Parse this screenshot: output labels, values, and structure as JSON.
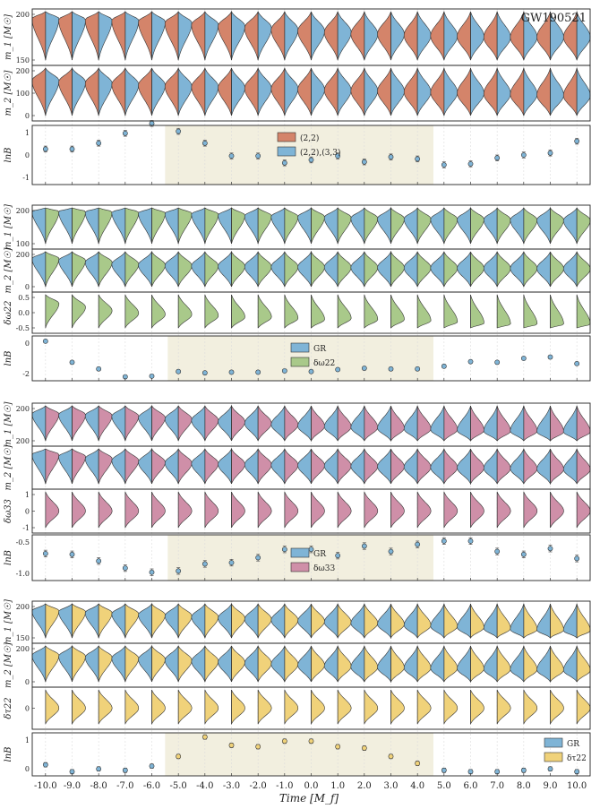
{
  "event_label": "GW190521",
  "x_axis_label": "Time [M_f]",
  "colors": {
    "c22": "#d4846a",
    "c2233": "#7fb4d6",
    "gr": "#7fb4d6",
    "dw22": "#a9c98a",
    "dw33": "#cf8fa8",
    "dt22": "#f0d27a",
    "highlight": "#f2efdf",
    "frame": "#222222"
  },
  "chart_data": [
    {
      "type": "violin",
      "panel_group": "A",
      "title": "GW190521",
      "times": [
        -10,
        -9,
        -8,
        -7,
        -6,
        -5,
        -4,
        -3,
        -2,
        -1,
        0,
        1,
        2,
        3,
        4,
        5,
        6,
        7,
        8,
        9,
        10
      ],
      "xtick_labels": [
        "-10.0",
        "-9.0",
        "-8.0",
        "-7.0",
        "-6.0",
        "-5.0",
        "-4.0",
        "-3.0",
        "-2.0",
        "-1.0",
        "0.0",
        "1.0",
        "2.0",
        "3.0",
        "4.0",
        "5.0",
        "6.0",
        "7.0",
        "8.0",
        "9.0",
        "10.0"
      ],
      "highlight_range": [
        -5.5,
        4.6
      ],
      "legend": [
        "(2,2)",
        "(2,2),(3,3)"
      ],
      "rows": [
        {
          "ylabel": "m_1 [M_sun]",
          "yticks": [
            "200",
            "150"
          ],
          "ylim": [
            120,
            210
          ],
          "left": "(2,2)",
          "right": "(2,2),(3,3)",
          "centers": [
            195,
            193,
            193,
            192,
            190,
            188,
            185,
            183,
            180,
            177,
            175,
            173,
            170,
            170,
            168,
            167,
            166,
            165,
            165,
            165,
            165
          ]
        },
        {
          "ylabel": "m_2 [M_sun]",
          "yticks": [
            "200",
            "100",
            "0"
          ],
          "ylim": [
            -10,
            210
          ],
          "left": "(2,2)",
          "right": "(2,2),(3,3)",
          "centers": [
            150,
            145,
            140,
            135,
            132,
            128,
            125,
            122,
            120,
            118,
            115,
            112,
            110,
            108,
            105,
            103,
            100,
            98,
            95,
            92,
            90
          ]
        }
      ],
      "lnB": {
        "ylabel": "lnB",
        "yticks": [
          "1",
          "0",
          "-1"
        ],
        "ylim": [
          -1.5,
          1.5
        ],
        "values": [
          0.3,
          0.3,
          0.6,
          1.1,
          1.6,
          1.2,
          0.6,
          -0.05,
          -0.05,
          -0.4,
          -0.25,
          -0.05,
          -0.35,
          -0.1,
          -0.2,
          -0.5,
          -0.45,
          -0.15,
          0.0,
          0.1,
          0.7
        ],
        "errors": [
          0.15,
          0.15,
          0.15,
          0.15,
          0.15,
          0.15,
          0.15,
          0.15,
          0.15,
          0.15,
          0.15,
          0.15,
          0.15,
          0.15,
          0.15,
          0.15,
          0.15,
          0.15,
          0.15,
          0.15,
          0.15
        ]
      }
    },
    {
      "type": "violin",
      "panel_group": "B",
      "times": [
        -10,
        -9,
        -8,
        -7,
        -6,
        -5,
        -4,
        -3,
        -2,
        -1,
        0,
        1,
        2,
        3,
        4,
        5,
        6,
        7,
        8,
        9,
        10
      ],
      "highlight_range": [
        -5.4,
        4.6
      ],
      "legend": [
        "GR",
        "δω22"
      ],
      "rows": [
        {
          "ylabel": "m_1 [M_sun]",
          "yticks": [
            "200",
            "100"
          ],
          "ylim": [
            90,
            215
          ],
          "left": "GR",
          "right": "δω22",
          "centers": [
            198,
            197,
            196,
            195,
            193,
            192,
            190,
            187,
            185,
            183,
            182,
            180,
            178,
            177,
            176,
            175,
            175,
            174,
            173,
            173,
            172
          ]
        },
        {
          "ylabel": "m_2 [M_sun]",
          "yticks": [
            "200",
            "0"
          ],
          "ylim": [
            -10,
            220
          ],
          "left": "GR",
          "right": "δω22",
          "centers": [
            170,
            160,
            150,
            140,
            135,
            132,
            130,
            128,
            126,
            125,
            124,
            123,
            122,
            121,
            120,
            119,
            118,
            117,
            117,
            116,
            115
          ]
        },
        {
          "ylabel": "δω22",
          "yticks": [
            "0.5",
            "0.0",
            "-0.5"
          ],
          "ylim": [
            -0.85,
            0.8
          ],
          "left": "none",
          "right": "δω22",
          "centers": [
            0.35,
            0.2,
            0.05,
            -0.05,
            -0.1,
            -0.1,
            -0.15,
            -0.2,
            -0.2,
            -0.25,
            -0.3,
            -0.25,
            -0.3,
            -0.3,
            -0.35,
            -0.4,
            -0.45,
            -0.55,
            -0.55,
            -0.55,
            -0.55
          ]
        }
      ],
      "lnB": {
        "ylabel": "lnB",
        "yticks": [
          "0",
          "-2"
        ],
        "ylim": [
          -2.4,
          1.0
        ],
        "values": [
          0.6,
          -1.0,
          -1.5,
          -2.1,
          -2.05,
          -1.7,
          -1.8,
          -1.75,
          -1.75,
          -1.65,
          -1.7,
          -1.55,
          -1.45,
          -1.5,
          -1.5,
          -1.3,
          -0.95,
          -1.0,
          -0.7,
          -0.6,
          -1.1
        ],
        "errors": [
          0.12,
          0.12,
          0.12,
          0.12,
          0.12,
          0.12,
          0.12,
          0.12,
          0.12,
          0.12,
          0.12,
          0.12,
          0.12,
          0.12,
          0.12,
          0.12,
          0.12,
          0.12,
          0.12,
          0.12,
          0.12
        ]
      }
    },
    {
      "type": "violin",
      "panel_group": "C",
      "times": [
        -10,
        -9,
        -8,
        -7,
        -6,
        -5,
        -4,
        -3,
        -2,
        -1,
        0,
        1,
        2,
        3,
        4,
        5,
        6,
        7,
        8,
        9,
        10
      ],
      "highlight_range": [
        -5.4,
        4.6
      ],
      "legend": [
        "GR",
        "δω33"
      ],
      "rows": [
        {
          "ylabel": "m_1 [M_sun]",
          "yticks": [
            "200",
            "200"
          ],
          "ylim": [
            150,
            210
          ],
          "left": "GR",
          "right": "δω33",
          "centers": [
            195,
            194,
            193,
            192,
            190,
            188,
            186,
            184,
            182,
            180,
            178,
            177,
            176,
            175,
            174,
            173,
            172,
            171,
            171,
            170,
            170
          ]
        },
        {
          "ylabel": "m_2 [M_sun]",
          "yticks": [],
          "ylim": [
            0,
            210
          ],
          "left": "GR",
          "right": "δω33",
          "centers": [
            170,
            160,
            150,
            140,
            132,
            128,
            125,
            122,
            120,
            118,
            116,
            114,
            112,
            110,
            108,
            106,
            104,
            102,
            100,
            98,
            96
          ]
        },
        {
          "ylabel": "δω33",
          "yticks": [
            "1",
            "0",
            "-1"
          ],
          "ylim": [
            -1.2,
            1.2
          ],
          "left": "none",
          "right": "δω33",
          "centers": [
            0.0,
            0.0,
            0.0,
            0.0,
            0.0,
            0.0,
            0.0,
            0.0,
            0.0,
            0.0,
            0.0,
            0.0,
            0.0,
            0.0,
            0.0,
            0.0,
            0.0,
            0.0,
            0.0,
            0.0,
            0.0
          ]
        }
      ],
      "lnB": {
        "ylabel": "lnB",
        "yticks": [
          "-0.5",
          "-1.0"
        ],
        "ylim": [
          -1.25,
          -0.15
        ],
        "values": [
          -0.6,
          -0.62,
          -0.78,
          -0.95,
          -1.05,
          -1.02,
          -0.85,
          -0.82,
          -0.7,
          -0.5,
          -0.5,
          -0.65,
          -0.42,
          -0.55,
          -0.38,
          -0.3,
          -0.3,
          -0.55,
          -0.62,
          -0.48,
          -0.72
        ],
        "errors": [
          0.08,
          0.08,
          0.08,
          0.08,
          0.08,
          0.08,
          0.08,
          0.08,
          0.08,
          0.08,
          0.08,
          0.08,
          0.08,
          0.08,
          0.08,
          0.08,
          0.08,
          0.08,
          0.08,
          0.08,
          0.08
        ]
      }
    },
    {
      "type": "violin",
      "panel_group": "D",
      "times": [
        -10,
        -9,
        -8,
        -7,
        -6,
        -5,
        -4,
        -3,
        -2,
        -1,
        0,
        1,
        2,
        3,
        4,
        5,
        6,
        7,
        8,
        9,
        10
      ],
      "highlight_range": [
        -5.5,
        4.6
      ],
      "legend": [
        "GR",
        "δτ22"
      ],
      "rows": [
        {
          "ylabel": "m_1 [M_sun]",
          "yticks": [
            "200",
            "150"
          ],
          "ylim": [
            130,
            210
          ],
          "left": "GR",
          "right": "δτ22",
          "centers": [
            192,
            190,
            188,
            186,
            184,
            182,
            180,
            178,
            176,
            174,
            172,
            170,
            168,
            166,
            164,
            162,
            160,
            158,
            156,
            155,
            154
          ]
        },
        {
          "ylabel": "m_2 [M_sun]",
          "yticks": [
            "200",
            "0"
          ],
          "ylim": [
            -10,
            210
          ],
          "left": "GR",
          "right": "δτ22",
          "centers": [
            150,
            145,
            140,
            135,
            130,
            125,
            120,
            115,
            110,
            105,
            100,
            95,
            90,
            88,
            86,
            84,
            82,
            80,
            78,
            76,
            74
          ]
        },
        {
          "ylabel": "δτ22",
          "yticks": [
            "0"
          ],
          "ylim": [
            -1.0,
            1.0
          ],
          "left": "none",
          "right": "δτ22",
          "centers": [
            0.0,
            0.0,
            0.0,
            0.0,
            0.0,
            0.0,
            0.0,
            0.0,
            0.0,
            0.0,
            0.0,
            0.0,
            0.0,
            0.0,
            0.0,
            0.0,
            0.0,
            0.0,
            0.0,
            0.0,
            0.0
          ]
        }
      ],
      "lnB": {
        "ylabel": "lnB",
        "yticks": [
          "1",
          "0"
        ],
        "ylim": [
          -0.4,
          1.15
        ],
        "values": [
          0.0,
          -0.25,
          -0.15,
          -0.2,
          -0.05,
          0.3,
          1.0,
          0.7,
          0.65,
          0.85,
          0.85,
          0.65,
          0.6,
          0.3,
          0.05,
          -0.2,
          -0.25,
          -0.25,
          -0.2,
          -0.15,
          -0.25
        ],
        "errors": [
          0.08,
          0.08,
          0.08,
          0.08,
          0.08,
          0.08,
          0.08,
          0.08,
          0.08,
          0.08,
          0.08,
          0.08,
          0.08,
          0.08,
          0.08,
          0.08,
          0.08,
          0.08,
          0.08,
          0.08,
          0.08
        ]
      }
    }
  ]
}
